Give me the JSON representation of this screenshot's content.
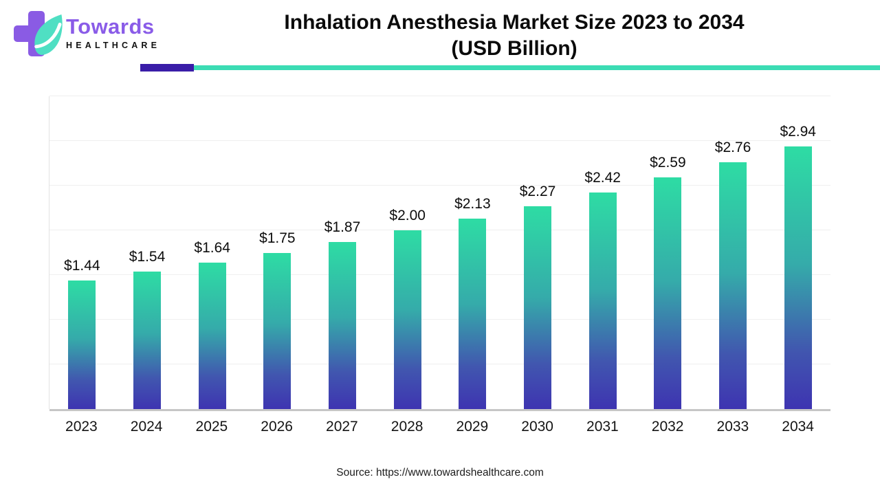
{
  "header": {
    "brand_name": "Towards",
    "brand_sub": "HEALTHCARE",
    "title_line1": "Inhalation Anesthesia Market Size 2023 to 2034",
    "title_line2": "(USD Billion)",
    "accent_purple": "#3A1DA8",
    "accent_teal": "#3CDCB4",
    "logo_cross_color": "#8A5BE4",
    "logo_leaf_color": "#4FDFC3",
    "brand_name_color": "#8A5CE8"
  },
  "chart_data": {
    "type": "bar",
    "title": "Inhalation Anesthesia Market Size 2023 to 2034 (USD Billion)",
    "categories": [
      "2023",
      "2024",
      "2025",
      "2026",
      "2027",
      "2028",
      "2029",
      "2030",
      "2031",
      "2032",
      "2033",
      "2034"
    ],
    "values": [
      1.44,
      1.54,
      1.64,
      1.75,
      1.87,
      2.0,
      2.13,
      2.27,
      2.42,
      2.59,
      2.76,
      2.94
    ],
    "labels": [
      "$1.44",
      "$1.54",
      "$1.64",
      "$1.75",
      "$1.87",
      "$2.00",
      "$2.13",
      "$2.27",
      "$2.42",
      "$2.59",
      "$2.76",
      "$2.94"
    ],
    "xlabel": "",
    "ylabel": "",
    "ylim": [
      0,
      3.5
    ],
    "gridline_interval": 0.5,
    "grid": true,
    "legend": false,
    "bar_gradient_top": "#2EDCA4",
    "bar_gradient_bottom": "#3E34B1"
  },
  "footer": {
    "source": "Source: https://www.towardshealthcare.com"
  }
}
